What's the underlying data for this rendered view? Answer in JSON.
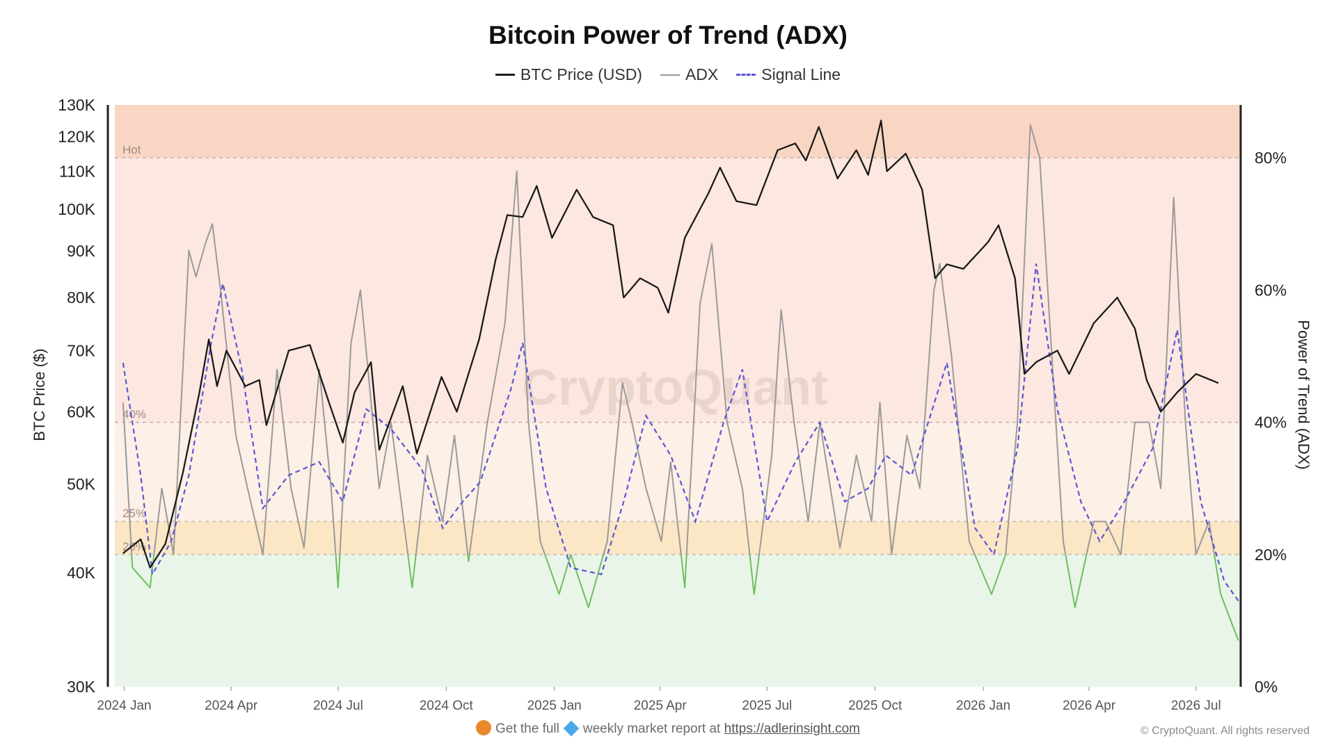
{
  "chart_data": {
    "type": "line",
    "title": "Bitcoin Power of Trend (ADX)",
    "watermark": "CryptoQuant",
    "legend": {
      "position": "top-center",
      "entries": [
        "BTC Price (USD)",
        "ADX",
        "Signal Line"
      ]
    },
    "x_axis": {
      "ticks": [
        "2024 Jan",
        "2024 Apr",
        "2024 Jul",
        "2024 Oct",
        "2025 Jan",
        "2025 Apr",
        "2025 Jul",
        "2025 Oct",
        "2026 Jan",
        "2026 Apr",
        "2026 Jul"
      ],
      "range": [
        "2023-12",
        "2026-08"
      ]
    },
    "y_left": {
      "label": "BTC Price ($)",
      "scale": "log",
      "range": [
        30000,
        130000
      ],
      "ticks": [
        {
          "value": 130000,
          "label": "130K"
        },
        {
          "value": 120000,
          "label": "120K"
        },
        {
          "value": 110000,
          "label": "110K"
        },
        {
          "value": 100000,
          "label": "100K"
        },
        {
          "value": 90000,
          "label": "90K"
        },
        {
          "value": 80000,
          "label": "80K"
        },
        {
          "value": 70000,
          "label": "70K"
        },
        {
          "value": 60000,
          "label": "60K"
        },
        {
          "value": 50000,
          "label": "50K"
        },
        {
          "value": 40000,
          "label": "40K"
        },
        {
          "value": 30000,
          "label": "30K"
        }
      ]
    },
    "y_right": {
      "label": "Power of Trend (ADX)",
      "range": [
        0,
        88
      ],
      "ticks": [
        {
          "value": 0,
          "label": "0%"
        },
        {
          "value": 20,
          "label": "20%"
        },
        {
          "value": 40,
          "label": "40%"
        },
        {
          "value": 60,
          "label": "60%"
        },
        {
          "value": 80,
          "label": "80%"
        }
      ]
    },
    "zones": [
      {
        "from": 0,
        "to": 20,
        "color": "#e9f5e9"
      },
      {
        "from": 20,
        "to": 25,
        "color": "#fbe6c6"
      },
      {
        "from": 25,
        "to": 40,
        "color": "#fdf0e6"
      },
      {
        "from": 40,
        "to": 80,
        "color": "#fce8e0"
      },
      {
        "from": 80,
        "to": 88,
        "color": "#f9d6c4"
      }
    ],
    "thresholds": [
      {
        "value": 80,
        "label": "Hot"
      },
      {
        "value": 40,
        "label": "40%"
      },
      {
        "value": 25,
        "label": "25%"
      },
      {
        "value": 20,
        "label": "20%"
      }
    ],
    "series": [
      {
        "name": "BTC Price (USD)",
        "color": "#1a1a1a",
        "points": [
          [
            "2023-12-31",
            42000
          ],
          [
            "2024-01-15",
            43500
          ],
          [
            "2024-01-23",
            40500
          ],
          [
            "2024-02-05",
            43000
          ],
          [
            "2024-02-20",
            51500
          ],
          [
            "2024-03-05",
            63000
          ],
          [
            "2024-03-13",
            72000
          ],
          [
            "2024-03-20",
            64000
          ],
          [
            "2024-03-28",
            70000
          ],
          [
            "2024-04-13",
            64000
          ],
          [
            "2024-04-25",
            65000
          ],
          [
            "2024-05-01",
            58000
          ],
          [
            "2024-05-20",
            70000
          ],
          [
            "2024-06-07",
            71000
          ],
          [
            "2024-06-24",
            61000
          ],
          [
            "2024-07-05",
            55500
          ],
          [
            "2024-07-15",
            63000
          ],
          [
            "2024-07-29",
            68000
          ],
          [
            "2024-08-05",
            54500
          ],
          [
            "2024-08-25",
            64000
          ],
          [
            "2024-09-06",
            54000
          ],
          [
            "2024-09-27",
            65500
          ],
          [
            "2024-10-10",
            60000
          ],
          [
            "2024-10-29",
            72000
          ],
          [
            "2024-11-12",
            88000
          ],
          [
            "2024-11-22",
            98500
          ],
          [
            "2024-12-05",
            98000
          ],
          [
            "2024-12-17",
            106000
          ],
          [
            "2024-12-30",
            93000
          ],
          [
            "2025-01-20",
            105000
          ],
          [
            "2025-02-03",
            98000
          ],
          [
            "2025-02-20",
            96000
          ],
          [
            "2025-03-01",
            80000
          ],
          [
            "2025-03-15",
            84000
          ],
          [
            "2025-03-30",
            82000
          ],
          [
            "2025-04-08",
            77000
          ],
          [
            "2025-04-22",
            93000
          ],
          [
            "2025-05-12",
            104000
          ],
          [
            "2025-05-22",
            111000
          ],
          [
            "2025-06-05",
            102000
          ],
          [
            "2025-06-22",
            101000
          ],
          [
            "2025-07-10",
            116000
          ],
          [
            "2025-07-25",
            118000
          ],
          [
            "2025-08-03",
            113000
          ],
          [
            "2025-08-14",
            123000
          ],
          [
            "2025-08-30",
            108000
          ],
          [
            "2025-09-15",
            116000
          ],
          [
            "2025-09-25",
            109000
          ],
          [
            "2025-10-06",
            125000
          ],
          [
            "2025-10-11",
            110000
          ],
          [
            "2025-10-27",
            115000
          ],
          [
            "2025-11-10",
            105000
          ],
          [
            "2025-11-21",
            84000
          ],
          [
            "2025-12-01",
            87000
          ],
          [
            "2025-12-15",
            86000
          ],
          [
            "2026-01-05",
            92000
          ],
          [
            "2026-01-14",
            96000
          ],
          [
            "2026-01-28",
            84000
          ],
          [
            "2026-02-05",
            66000
          ],
          [
            "2026-02-15",
            68000
          ],
          [
            "2026-03-05",
            70000
          ],
          [
            "2026-03-15",
            66000
          ],
          [
            "2026-04-05",
            75000
          ],
          [
            "2026-04-25",
            80000
          ],
          [
            "2026-05-10",
            74000
          ],
          [
            "2026-05-20",
            65000
          ],
          [
            "2026-06-01",
            60000
          ],
          [
            "2026-06-15",
            63000
          ],
          [
            "2026-07-01",
            66000
          ],
          [
            "2026-07-20",
            64500
          ]
        ]
      },
      {
        "name": "ADX",
        "color": "#9a9a9a",
        "low_color": "#6cbf5c",
        "points": [
          [
            "2023-12-31",
            43
          ],
          [
            "2024-01-08",
            18
          ],
          [
            "2024-01-23",
            15
          ],
          [
            "2024-02-02",
            30
          ],
          [
            "2024-02-12",
            20
          ],
          [
            "2024-02-25",
            66
          ],
          [
            "2024-03-02",
            62
          ],
          [
            "2024-03-10",
            67
          ],
          [
            "2024-03-16",
            70
          ],
          [
            "2024-03-23",
            60
          ],
          [
            "2024-04-05",
            38
          ],
          [
            "2024-04-15",
            30
          ],
          [
            "2024-04-28",
            20
          ],
          [
            "2024-05-10",
            48
          ],
          [
            "2024-05-22",
            30
          ],
          [
            "2024-06-02",
            21
          ],
          [
            "2024-06-15",
            48
          ],
          [
            "2024-06-25",
            30
          ],
          [
            "2024-07-01",
            15
          ],
          [
            "2024-07-12",
            52
          ],
          [
            "2024-07-20",
            60
          ],
          [
            "2024-08-05",
            30
          ],
          [
            "2024-08-15",
            40
          ],
          [
            "2024-09-02",
            15
          ],
          [
            "2024-09-15",
            35
          ],
          [
            "2024-09-28",
            25
          ],
          [
            "2024-10-08",
            38
          ],
          [
            "2024-10-20",
            19
          ],
          [
            "2024-11-05",
            40
          ],
          [
            "2024-11-20",
            55
          ],
          [
            "2024-11-30",
            78
          ],
          [
            "2024-12-10",
            40
          ],
          [
            "2024-12-20",
            22
          ],
          [
            "2025-01-05",
            14
          ],
          [
            "2025-01-15",
            20
          ],
          [
            "2025-01-30",
            12
          ],
          [
            "2025-02-15",
            22
          ],
          [
            "2025-02-28",
            46
          ],
          [
            "2025-03-08",
            40
          ],
          [
            "2025-03-20",
            30
          ],
          [
            "2025-04-02",
            22
          ],
          [
            "2025-04-10",
            34
          ],
          [
            "2025-04-22",
            15
          ],
          [
            "2025-05-05",
            58
          ],
          [
            "2025-05-15",
            67
          ],
          [
            "2025-05-28",
            40
          ],
          [
            "2025-06-10",
            30
          ],
          [
            "2025-06-20",
            14
          ],
          [
            "2025-07-05",
            35
          ],
          [
            "2025-07-13",
            57
          ],
          [
            "2025-07-24",
            40
          ],
          [
            "2025-08-05",
            25
          ],
          [
            "2025-08-15",
            40
          ],
          [
            "2025-09-01",
            21
          ],
          [
            "2025-09-15",
            35
          ],
          [
            "2025-09-28",
            25
          ],
          [
            "2025-10-05",
            43
          ],
          [
            "2025-10-15",
            20
          ],
          [
            "2025-10-28",
            38
          ],
          [
            "2025-11-08",
            30
          ],
          [
            "2025-11-20",
            60
          ],
          [
            "2025-11-25",
            64
          ],
          [
            "2025-12-05",
            50
          ],
          [
            "2025-12-20",
            22
          ],
          [
            "2026-01-08",
            14
          ],
          [
            "2026-01-20",
            20
          ],
          [
            "2026-01-30",
            40
          ],
          [
            "2026-02-10",
            85
          ],
          [
            "2026-02-18",
            80
          ],
          [
            "2026-03-01",
            48
          ],
          [
            "2026-03-10",
            22
          ],
          [
            "2026-03-20",
            12
          ],
          [
            "2026-04-05",
            25
          ],
          [
            "2026-04-15",
            25
          ],
          [
            "2026-04-28",
            20
          ],
          [
            "2026-05-10",
            40
          ],
          [
            "2026-05-22",
            40
          ],
          [
            "2026-06-01",
            30
          ],
          [
            "2026-06-12",
            74
          ],
          [
            "2026-06-22",
            40
          ],
          [
            "2026-07-01",
            20
          ],
          [
            "2026-07-12",
            25
          ],
          [
            "2026-07-22",
            14
          ],
          [
            "2026-08-06",
            7
          ]
        ]
      },
      {
        "name": "Signal Line",
        "color": "#5b55d6",
        "dashed": true,
        "points": [
          [
            "2023-12-31",
            49
          ],
          [
            "2024-01-15",
            32
          ],
          [
            "2024-01-25",
            17
          ],
          [
            "2024-02-10",
            22
          ],
          [
            "2024-02-25",
            32
          ],
          [
            "2024-03-15",
            52
          ],
          [
            "2024-03-25",
            61
          ],
          [
            "2024-04-10",
            48
          ],
          [
            "2024-04-28",
            27
          ],
          [
            "2024-05-20",
            32
          ],
          [
            "2024-06-15",
            34
          ],
          [
            "2024-07-05",
            28
          ],
          [
            "2024-07-25",
            42
          ],
          [
            "2024-08-15",
            39
          ],
          [
            "2024-09-10",
            33
          ],
          [
            "2024-09-28",
            24
          ],
          [
            "2024-10-15",
            28
          ],
          [
            "2024-10-30",
            31
          ],
          [
            "2024-11-25",
            45
          ],
          [
            "2024-12-05",
            52
          ],
          [
            "2024-12-25",
            30
          ],
          [
            "2025-01-15",
            18
          ],
          [
            "2025-02-10",
            17
          ],
          [
            "2025-03-01",
            28
          ],
          [
            "2025-03-20",
            41
          ],
          [
            "2025-04-10",
            35
          ],
          [
            "2025-05-01",
            25
          ],
          [
            "2025-05-25",
            40
          ],
          [
            "2025-06-10",
            48
          ],
          [
            "2025-07-01",
            25
          ],
          [
            "2025-07-25",
            34
          ],
          [
            "2025-08-15",
            40
          ],
          [
            "2025-09-05",
            28
          ],
          [
            "2025-09-25",
            30
          ],
          [
            "2025-10-10",
            35
          ],
          [
            "2025-11-01",
            32
          ],
          [
            "2025-12-01",
            49
          ],
          [
            "2025-12-25",
            24
          ],
          [
            "2026-01-10",
            20
          ],
          [
            "2026-01-30",
            36
          ],
          [
            "2026-02-15",
            64
          ],
          [
            "2026-03-05",
            42
          ],
          [
            "2026-03-25",
            28
          ],
          [
            "2026-04-10",
            22
          ],
          [
            "2026-05-01",
            28
          ],
          [
            "2026-05-25",
            36
          ],
          [
            "2026-06-15",
            54
          ],
          [
            "2026-07-05",
            28
          ],
          [
            "2026-07-25",
            16
          ],
          [
            "2026-08-06",
            13
          ]
        ]
      }
    ]
  },
  "footer": {
    "text_before": "Get the full",
    "text_middle": "weekly market report at",
    "link": "https://adlerinsight.com",
    "copyright": "© CryptoQuant. All rights reserved"
  }
}
